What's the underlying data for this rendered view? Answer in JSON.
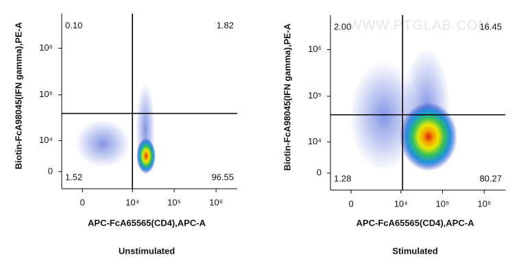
{
  "chart_data": [
    {
      "type": "quadrant",
      "title": "Unstimulated",
      "xlabel": "APC-FcA65565(CD4),APC-A",
      "ylabel": "Biotin-FcA98045(IFN gamma),PE-A",
      "xscale": "biexponential",
      "yscale": "biexponential",
      "xlim": [
        -1800,
        3200000
      ],
      "ylim": [
        -4300,
        5500000
      ],
      "xticks": [
        0,
        {
          "value": 10000,
          "label": "10⁴"
        },
        {
          "value": 100000,
          "label": "10⁵"
        },
        {
          "value": 1000000,
          "label": "10⁶"
        }
      ],
      "yticks": [
        0,
        {
          "value": 10000,
          "label": "10⁴"
        },
        {
          "value": 100000,
          "label": "10⁵"
        },
        {
          "value": 1000000,
          "label": "10⁶"
        }
      ],
      "gate": {
        "x": 10000,
        "y": 40000
      },
      "quadrants": {
        "values": [
          0.1,
          1.82,
          1.52,
          96.55
        ],
        "value_labels": [
          "0.10",
          "1.82",
          "1.52",
          "96.55"
        ]
      }
    },
    {
      "type": "quadrant",
      "title": "Stimulated",
      "xlabel": "APC-FcA65565(CD4),APC-A",
      "ylabel": "Biotin-FcA98045(IFN gamma),PE-A",
      "xscale": "biexponential",
      "yscale": "biexponential",
      "xlim": [
        -1800,
        3200000
      ],
      "ylim": [
        -4300,
        5500000
      ],
      "xticks": [
        0,
        {
          "value": 10000,
          "label": "10⁴"
        },
        {
          "value": 100000,
          "label": "10⁵"
        },
        {
          "value": 1000000,
          "label": "10⁶"
        }
      ],
      "yticks": [
        0,
        {
          "value": 10000,
          "label": "10⁴"
        },
        {
          "value": 100000,
          "label": "10⁵"
        },
        {
          "value": 1000000,
          "label": "10⁶"
        }
      ],
      "gate": {
        "x": 11000,
        "y": 40000
      },
      "quadrants": {
        "values": [
          2.0,
          16.45,
          1.28,
          80.27
        ],
        "value_labels": [
          "2.00",
          "16.45",
          "1.28",
          "80.27"
        ]
      },
      "watermark": "WWW.PTGLAB.COM"
    }
  ]
}
